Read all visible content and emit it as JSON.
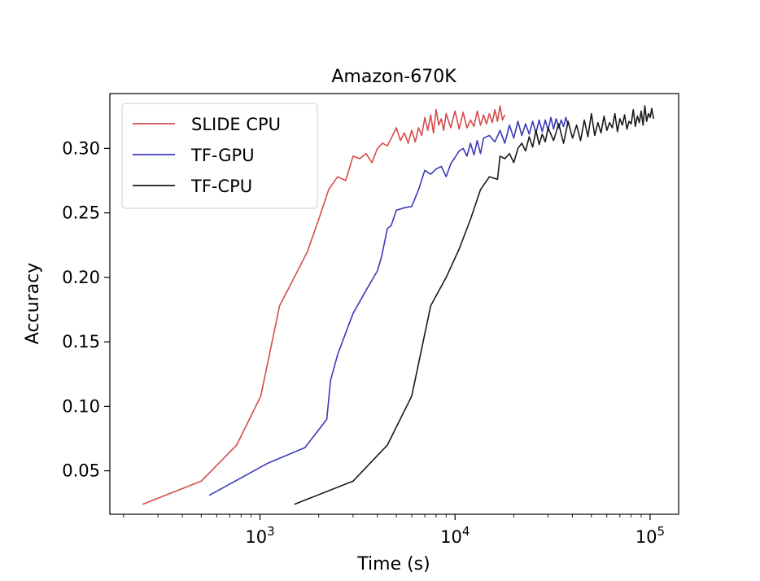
{
  "chart_data": {
    "type": "line",
    "title": "Amazon-670K",
    "xlabel": "Time (s)",
    "ylabel": "Accuracy",
    "x_scale": "log",
    "xlim": [
      170,
      140000
    ],
    "ylim": [
      0.0163,
      0.3425
    ],
    "x_ticks": [
      {
        "value": 1000,
        "base": "10",
        "exp": "3"
      },
      {
        "value": 10000,
        "base": "10",
        "exp": "4"
      },
      {
        "value": 100000,
        "base": "10",
        "exp": "5"
      }
    ],
    "y_ticks": [
      {
        "value": 0.05,
        "label": "0.05"
      },
      {
        "value": 0.1,
        "label": "0.10"
      },
      {
        "value": 0.15,
        "label": "0.15"
      },
      {
        "value": 0.2,
        "label": "0.20"
      },
      {
        "value": 0.25,
        "label": "0.25"
      },
      {
        "value": 0.3,
        "label": "0.30"
      }
    ],
    "grid": false,
    "legend_position": "upper-left",
    "series": [
      {
        "name": "SLIDE CPU",
        "color": "#d64b4b",
        "x": [
          250,
          500,
          760,
          1010,
          1260,
          1500,
          1750,
          2000,
          2250,
          2500,
          2750,
          3000,
          3250,
          3500,
          3750,
          4000,
          4250,
          4500,
          4750,
          5000,
          5250,
          5500,
          5750,
          6000,
          6250,
          6500,
          6750,
          7000,
          7250,
          7500,
          7750,
          8000,
          8250,
          8500,
          8750,
          9000,
          9500,
          10000,
          10500,
          11000,
          11500,
          12000,
          12500,
          13000,
          13500,
          14000,
          14500,
          15000,
          15500,
          16000,
          16500,
          17000,
          17500,
          18000
        ],
        "y": [
          0.024,
          0.042,
          0.07,
          0.108,
          0.178,
          0.2,
          0.22,
          0.245,
          0.268,
          0.278,
          0.275,
          0.294,
          0.292,
          0.296,
          0.289,
          0.3,
          0.304,
          0.302,
          0.309,
          0.316,
          0.306,
          0.312,
          0.304,
          0.314,
          0.305,
          0.316,
          0.31,
          0.324,
          0.314,
          0.326,
          0.312,
          0.33,
          0.318,
          0.323,
          0.314,
          0.327,
          0.316,
          0.329,
          0.315,
          0.328,
          0.316,
          0.322,
          0.317,
          0.329,
          0.318,
          0.326,
          0.319,
          0.327,
          0.32,
          0.33,
          0.321,
          0.333,
          0.322,
          0.326
        ]
      },
      {
        "name": "TF-GPU",
        "color": "#3a3ab8",
        "x": [
          550,
          1100,
          1700,
          2200,
          2300,
          2500,
          2800,
          3000,
          3500,
          4000,
          4200,
          4500,
          4700,
          5000,
          5500,
          6000,
          6500,
          7000,
          7500,
          8000,
          8500,
          9000,
          9500,
          10000,
          10500,
          11000,
          11500,
          12000,
          12500,
          13000,
          13500,
          14000,
          15000,
          16000,
          17000,
          18000,
          19000,
          20000,
          21000,
          22000,
          23000,
          24000,
          25000,
          26000,
          27000,
          28000,
          29000,
          30000,
          31000,
          32000,
          33000,
          34000,
          35000,
          36000,
          37000,
          38000
        ],
        "y": [
          0.031,
          0.056,
          0.068,
          0.09,
          0.12,
          0.14,
          0.16,
          0.172,
          0.19,
          0.205,
          0.216,
          0.238,
          0.24,
          0.252,
          0.254,
          0.255,
          0.268,
          0.283,
          0.28,
          0.284,
          0.286,
          0.278,
          0.288,
          0.293,
          0.298,
          0.3,
          0.294,
          0.304,
          0.295,
          0.306,
          0.296,
          0.308,
          0.31,
          0.305,
          0.314,
          0.304,
          0.318,
          0.308,
          0.321,
          0.31,
          0.319,
          0.311,
          0.321,
          0.312,
          0.322,
          0.313,
          0.322,
          0.314,
          0.324,
          0.315,
          0.323,
          0.316,
          0.322,
          0.317,
          0.324,
          0.318
        ]
      },
      {
        "name": "TF-CPU",
        "color": "#1a1a1a",
        "x": [
          1500,
          3000,
          4500,
          6000,
          7500,
          9000,
          10500,
          12000,
          13500,
          15000,
          16500,
          17000,
          18000,
          19000,
          20000,
          21000,
          22000,
          23000,
          24000,
          25000,
          26000,
          27000,
          28000,
          29000,
          30000,
          32000,
          34000,
          36000,
          38000,
          40000,
          42000,
          44000,
          46000,
          48000,
          50000,
          52000,
          54000,
          56000,
          58000,
          60000,
          62000,
          64000,
          66000,
          68000,
          70000,
          72000,
          74000,
          76000,
          78000,
          80000,
          82000,
          84000,
          86000,
          88000,
          90000,
          92000,
          94000,
          96000,
          98000,
          100000,
          102000,
          104000
        ],
        "y": [
          0.024,
          0.042,
          0.07,
          0.108,
          0.178,
          0.2,
          0.222,
          0.245,
          0.268,
          0.278,
          0.276,
          0.294,
          0.292,
          0.296,
          0.289,
          0.3,
          0.304,
          0.298,
          0.309,
          0.301,
          0.314,
          0.303,
          0.311,
          0.305,
          0.316,
          0.306,
          0.319,
          0.304,
          0.321,
          0.308,
          0.318,
          0.306,
          0.322,
          0.309,
          0.327,
          0.31,
          0.32,
          0.312,
          0.325,
          0.314,
          0.32,
          0.316,
          0.327,
          0.313,
          0.323,
          0.318,
          0.326,
          0.315,
          0.321,
          0.319,
          0.33,
          0.317,
          0.325,
          0.32,
          0.329,
          0.318,
          0.333,
          0.321,
          0.327,
          0.324,
          0.331,
          0.323
        ]
      }
    ]
  }
}
